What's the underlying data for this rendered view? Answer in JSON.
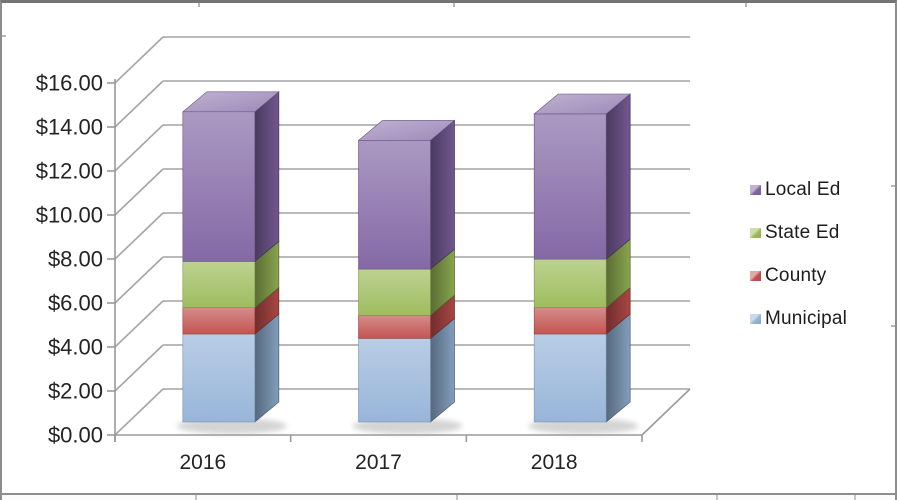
{
  "chart_data": {
    "type": "bar",
    "variant": "3d-stacked-column",
    "title": "",
    "categories": [
      "2016",
      "2017",
      "2018"
    ],
    "series": [
      {
        "name": "Municipal",
        "color": "#95b3d7",
        "values": [
          4.0,
          3.8,
          4.0
        ]
      },
      {
        "name": "County",
        "color": "#c0504d",
        "values": [
          1.2,
          1.05,
          1.2
        ]
      },
      {
        "name": "State Ed",
        "color": "#9bbb59",
        "values": [
          2.1,
          2.1,
          2.2
        ]
      },
      {
        "name": "Local Ed",
        "color": "#8064a2",
        "values": [
          6.8,
          5.85,
          6.6
        ]
      }
    ],
    "stack_totals": [
      14.1,
      12.8,
      14.0
    ],
    "ylim": [
      0,
      16
    ],
    "y_tick_step": 2,
    "y_tick_labels": [
      "$0.00",
      "$2.00",
      "$4.00",
      "$6.00",
      "$8.00",
      "$10.00",
      "$12.00",
      "$14.00",
      "$16.00"
    ],
    "grid": true,
    "legend": {
      "position": "right",
      "entries": [
        "Local Ed",
        "State Ed",
        "County",
        "Municipal"
      ]
    },
    "colors": {
      "gridline": "#a4a4a4",
      "axis_line": "#9a9a9a",
      "axis_text": "#242424",
      "background": "#ffffff",
      "frame_border": "#8d8d8d",
      "shadow": "#8f8f8f"
    }
  }
}
